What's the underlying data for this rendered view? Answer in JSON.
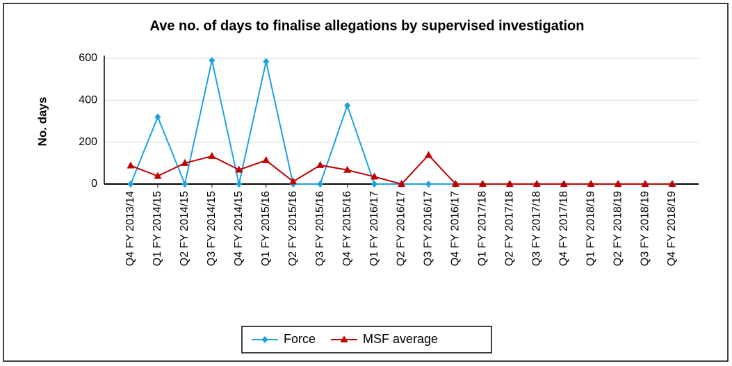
{
  "chart_data": {
    "type": "line",
    "title": "Ave no. of days to finalise allegations by supervised investigation",
    "y_label": "No. days",
    "categories": [
      "Q4 FY 2013/14",
      "Q1 FY 2014/15",
      "Q2 FY 2014/15",
      "Q3 FY 2014/15",
      "Q4 FY 2014/15",
      "Q1 FY 2015/16",
      "Q2 FY 2015/16",
      "Q3 FY 2015/16",
      "Q4 FY 2015/16",
      "Q1 FY 2016/17",
      "Q2 FY 2016/17",
      "Q3 FY 2016/17",
      "Q4 FY 2016/17",
      "Q1 FY 2017/18",
      "Q2 FY 2017/18",
      "Q3 FY 2017/18",
      "Q4 FY 2017/18",
      "Q1 FY 2018/19",
      "Q2 FY 2018/19",
      "Q3 FY 2018/19",
      "Q4 FY 2018/19"
    ],
    "series": [
      {
        "name": "Force",
        "color": "#1ba1e2",
        "marker": "diamond",
        "values": [
          0,
          320,
          0,
          590,
          0,
          585,
          0,
          0,
          375,
          0,
          0,
          0,
          0,
          0,
          0,
          0,
          0,
          0,
          0,
          0,
          0
        ]
      },
      {
        "name": "MSF average",
        "color": "#c00000",
        "marker": "triangle",
        "values": [
          88,
          38,
          100,
          133,
          68,
          113,
          12,
          90,
          67,
          35,
          0,
          138,
          0,
          0,
          0,
          0,
          0,
          0,
          0,
          0,
          0
        ]
      }
    ],
    "ylim": [
      0,
      600
    ],
    "yticks": [
      0,
      200,
      400,
      600
    ],
    "grid": true,
    "legend": "bottom"
  }
}
